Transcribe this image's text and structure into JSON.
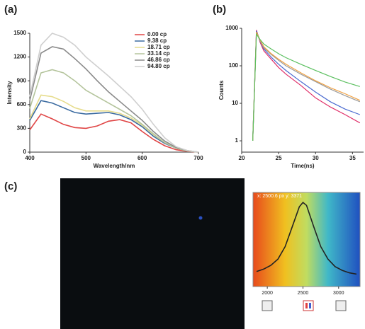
{
  "panel_labels": [
    "(a)",
    "(b)",
    "(c)"
  ],
  "chart_data": [
    {
      "type": "line",
      "xlabel": "Wavelength/nm",
      "ylabel": "Intensity",
      "xlim": [
        400,
        700
      ],
      "xticks": [
        400,
        500,
        600,
        700
      ],
      "ylim": [
        0,
        1500
      ],
      "yticks": [
        0,
        300,
        600,
        900,
        1200,
        1500
      ],
      "legend": "upper right",
      "log": false,
      "x": [
        400,
        420,
        440,
        460,
        480,
        500,
        520,
        540,
        560,
        580,
        600,
        620,
        640,
        660,
        680,
        700
      ],
      "series": [
        {
          "name": "0.00 cp",
          "color": "#e04545",
          "values": [
            280,
            480,
            420,
            350,
            310,
            300,
            330,
            390,
            410,
            370,
            260,
            160,
            80,
            30,
            10,
            0
          ]
        },
        {
          "name": "9.38 cp",
          "color": "#3a6aa0",
          "values": [
            400,
            650,
            620,
            560,
            500,
            480,
            490,
            500,
            470,
            410,
            320,
            200,
            110,
            50,
            15,
            0
          ]
        },
        {
          "name": "18.71 cp",
          "color": "#e6dc8c",
          "values": [
            420,
            720,
            700,
            640,
            560,
            520,
            520,
            520,
            490,
            430,
            340,
            220,
            120,
            50,
            15,
            0
          ]
        },
        {
          "name": "33.14 cp",
          "color": "#b4c49c",
          "values": [
            550,
            1000,
            1040,
            1000,
            900,
            780,
            700,
            620,
            540,
            460,
            350,
            230,
            120,
            50,
            15,
            0
          ]
        },
        {
          "name": "46.86 cp",
          "color": "#8a8a8a",
          "values": [
            650,
            1250,
            1330,
            1300,
            1180,
            1050,
            900,
            760,
            640,
            520,
            400,
            260,
            140,
            60,
            20,
            0
          ]
        },
        {
          "name": "94.80 cp",
          "color": "#cfcfcf",
          "values": [
            700,
            1350,
            1500,
            1450,
            1350,
            1200,
            1080,
            960,
            830,
            700,
            540,
            350,
            180,
            70,
            20,
            0
          ]
        }
      ]
    },
    {
      "type": "line",
      "xlabel": "Time(ns)",
      "ylabel": "Counts",
      "log": true,
      "xlim": [
        20,
        36.5
      ],
      "xticks": [
        20,
        25,
        30,
        35
      ],
      "ylim": [
        0.5,
        1000
      ],
      "yticks": [
        1,
        10,
        100,
        1000
      ],
      "x": [
        21.5,
        22,
        22.5,
        23,
        24,
        25,
        26,
        28,
        30,
        32,
        34,
        36
      ],
      "series": [
        {
          "color": "#e0306a",
          "values": [
            1,
            900,
            420,
            250,
            150,
            90,
            60,
            30,
            14,
            8,
            5,
            3
          ]
        },
        {
          "color": "#4a6ad0",
          "values": [
            1,
            850,
            450,
            280,
            170,
            110,
            75,
            38,
            20,
            11,
            7,
            5
          ]
        },
        {
          "color": "#9a9a9a",
          "values": [
            1,
            750,
            460,
            300,
            200,
            140,
            100,
            60,
            38,
            24,
            16,
            11
          ]
        },
        {
          "color": "#f0a040",
          "values": [
            1,
            800,
            480,
            320,
            210,
            150,
            110,
            65,
            40,
            26,
            18,
            12
          ]
        },
        {
          "color": "#5cc060",
          "values": [
            1,
            700,
            500,
            380,
            280,
            210,
            165,
            110,
            75,
            52,
            37,
            28
          ]
        }
      ]
    },
    {
      "type": "line",
      "log": false,
      "annotation": "x: 2500.6 px   y: 3371",
      "xlim": [
        1800,
        3300
      ],
      "xticks": [
        2000,
        2500,
        3000
      ],
      "ylim": [
        0,
        3600
      ],
      "x": [
        1850,
        1950,
        2050,
        2150,
        2250,
        2350,
        2450,
        2500,
        2550,
        2650,
        2750,
        2850,
        2950,
        3050,
        3150,
        3250
      ],
      "series": [
        {
          "color": "#222222",
          "values": [
            600,
            700,
            850,
            1100,
            1600,
            2400,
            3200,
            3371,
            3250,
            2400,
            1600,
            1100,
            800,
            650,
            550,
            500
          ]
        }
      ]
    }
  ]
}
